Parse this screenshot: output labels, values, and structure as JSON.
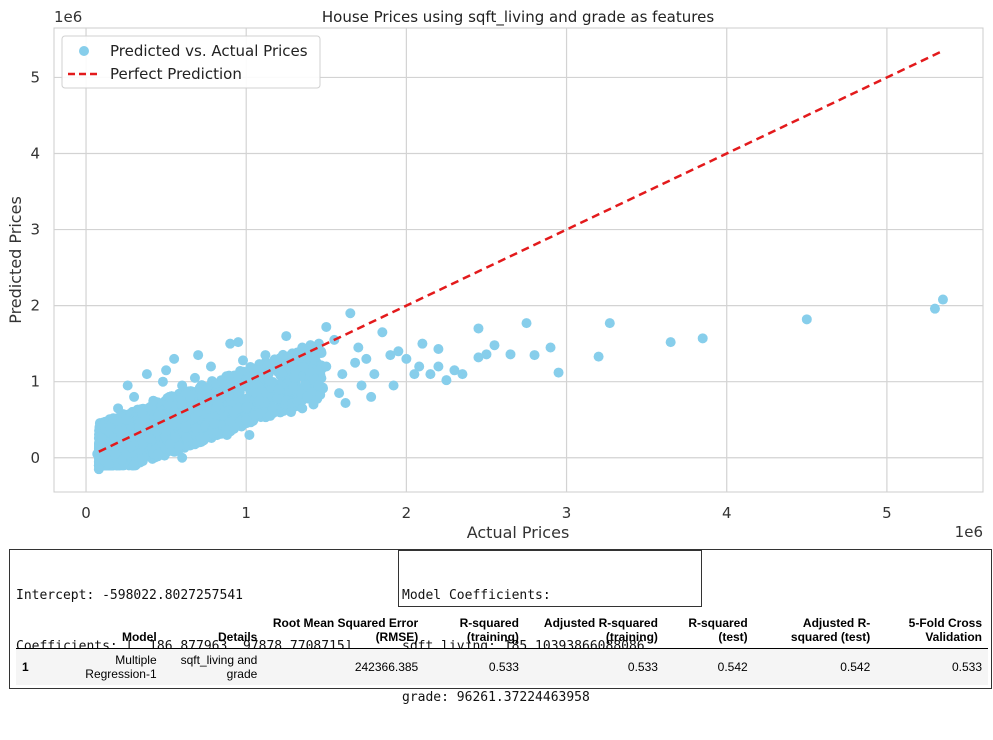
{
  "chart_data": {
    "type": "scatter",
    "title": "House Prices using sqft_living and grade as features",
    "xlabel": "Actual Prices",
    "ylabel": "Predicted Prices",
    "x_scale_label": "1e6",
    "y_scale_label": "1e6",
    "xlim": [
      -0.2,
      5.6
    ],
    "ylim": [
      -0.45,
      5.65
    ],
    "xticks": [
      0,
      1,
      2,
      3,
      4,
      5
    ],
    "yticks": [
      0,
      1,
      2,
      3,
      4,
      5
    ],
    "grid": true,
    "legend_position": "top-left",
    "series": [
      {
        "name": "Predicted vs. Actual Prices",
        "kind": "scatter",
        "color": "#87ceeb",
        "points": [
          [
            5.35,
            2.08
          ],
          [
            5.3,
            1.96
          ],
          [
            4.5,
            1.82
          ],
          [
            3.85,
            1.57
          ],
          [
            3.65,
            1.52
          ],
          [
            3.27,
            1.77
          ],
          [
            3.2,
            1.33
          ],
          [
            2.95,
            1.12
          ],
          [
            2.9,
            1.45
          ],
          [
            2.8,
            1.35
          ],
          [
            2.75,
            1.77
          ],
          [
            2.65,
            1.36
          ],
          [
            2.55,
            1.48
          ],
          [
            2.5,
            1.36
          ],
          [
            2.45,
            1.7
          ],
          [
            2.45,
            1.32
          ],
          [
            2.35,
            1.1
          ],
          [
            2.3,
            1.15
          ],
          [
            2.2,
            1.43
          ],
          [
            2.2,
            1.2
          ],
          [
            2.15,
            1.1
          ],
          [
            2.1,
            1.5
          ],
          [
            2.08,
            1.2
          ],
          [
            2.05,
            1.1
          ],
          [
            2.0,
            1.3
          ],
          [
            1.95,
            1.4
          ],
          [
            1.9,
            1.35
          ],
          [
            1.85,
            1.65
          ],
          [
            1.8,
            1.1
          ],
          [
            1.78,
            0.8
          ],
          [
            1.75,
            1.3
          ],
          [
            1.72,
            0.95
          ],
          [
            1.7,
            1.45
          ],
          [
            1.68,
            1.25
          ],
          [
            1.65,
            1.9
          ],
          [
            1.6,
            1.1
          ],
          [
            1.58,
            0.85
          ],
          [
            1.55,
            1.55
          ],
          [
            1.5,
            1.72
          ],
          [
            1.5,
            1.2
          ],
          [
            1.45,
            0.95
          ],
          [
            1.42,
            0.7
          ],
          [
            1.35,
            1.45
          ],
          [
            1.3,
            1.05
          ],
          [
            1.28,
            0.6
          ],
          [
            1.25,
            1.6
          ],
          [
            1.2,
            0.9
          ],
          [
            1.15,
            0.55
          ],
          [
            1.12,
            1.35
          ],
          [
            1.08,
            0.75
          ],
          [
            1.05,
            1.15
          ],
          [
            1.0,
            0.5
          ],
          [
            0.98,
            1.28
          ],
          [
            0.95,
            0.85
          ],
          [
            0.92,
            0.6
          ],
          [
            0.9,
            1.5
          ],
          [
            0.88,
            0.3
          ],
          [
            0.85,
            1.0
          ],
          [
            0.82,
            0.7
          ],
          [
            0.8,
            0.45
          ],
          [
            0.78,
            1.2
          ],
          [
            0.75,
            0.9
          ],
          [
            0.72,
            0.25
          ],
          [
            0.7,
            0.6
          ],
          [
            0.68,
            1.05
          ],
          [
            0.65,
            0.8
          ],
          [
            0.62,
            0.4
          ],
          [
            0.6,
            0.95
          ],
          [
            0.58,
            0.15
          ],
          [
            0.55,
            1.3
          ],
          [
            0.55,
            0.6
          ],
          [
            0.52,
            0.8
          ],
          [
            0.5,
            0.35
          ],
          [
            0.48,
            1.0
          ],
          [
            0.45,
            0.55
          ],
          [
            0.45,
            0.05
          ],
          [
            0.42,
            0.75
          ],
          [
            0.4,
            0.25
          ],
          [
            0.38,
            1.1
          ],
          [
            0.35,
            0.6
          ],
          [
            0.33,
            0.4
          ],
          [
            0.3,
            0.8
          ],
          [
            0.28,
            0.15
          ],
          [
            0.25,
            0.5
          ],
          [
            0.22,
            0.3
          ],
          [
            0.2,
            0.65
          ],
          [
            0.18,
            0.05
          ],
          [
            0.15,
            0.4
          ],
          [
            0.13,
            0.2
          ],
          [
            0.12,
            -0.05
          ],
          [
            0.1,
            0.25
          ],
          [
            0.09,
            0.1
          ],
          [
            0.08,
            -0.15
          ],
          [
            0.07,
            0.05
          ],
          [
            0.14,
            -0.08
          ],
          [
            0.35,
            -0.02
          ],
          [
            0.6,
            0.0
          ],
          [
            1.02,
            0.3
          ],
          [
            1.35,
            0.65
          ],
          [
            1.62,
            0.72
          ],
          [
            1.92,
            0.95
          ],
          [
            2.25,
            1.02
          ],
          [
            0.26,
            0.95
          ],
          [
            0.5,
            1.15
          ],
          [
            0.7,
            1.35
          ],
          [
            0.95,
            1.52
          ]
        ]
      },
      {
        "name": "Perfect Prediction",
        "kind": "line",
        "color": "#e31a1c",
        "dash": true,
        "x": [
          0.08,
          5.35
        ],
        "y": [
          0.08,
          5.35
        ]
      }
    ]
  },
  "output": {
    "intercept_line": "Intercept: -598022.8027257541",
    "coefficients_line": "Coefficients: [  186.877963  97878.7708715]",
    "model_coeff_title": "Model Coefficients:",
    "model_coeff_sqft": "sqft_living: 185.10393866088086",
    "model_coeff_grade": "grade: 96261.37224463958"
  },
  "results_table": {
    "headers": [
      "",
      "Model",
      "Details",
      "Root Mean Squared Error (RMSE)",
      "R-squared (training)",
      "Adjusted R-squared (training)",
      "R-squared (test)",
      "Adjusted R-squared (test)",
      "5-Fold Cross Validation"
    ],
    "rows": [
      [
        "1",
        "Multiple Regression-1",
        "sqft_living and grade",
        "242366.385",
        "0.533",
        "0.533",
        "0.542",
        "0.542",
        "0.533"
      ]
    ]
  }
}
